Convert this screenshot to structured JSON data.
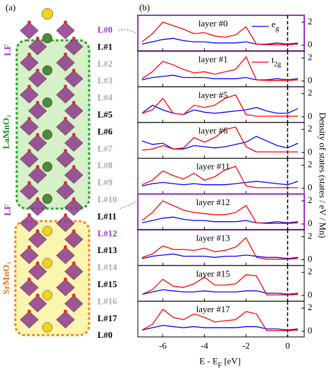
{
  "panel_a": {
    "label": "(a)",
    "lf_top": "LF",
    "lf_bottom": "LF",
    "lamno3": "LaMnO₃",
    "srmno3": "SrMnO₃",
    "layers": [
      "L#0",
      "L#1",
      "L#2",
      "L#3",
      "L#4",
      "L#5",
      "L#6",
      "L#7",
      "L#8",
      "L#9",
      "L#10",
      "L#11",
      "L#12",
      "L#13",
      "L#14",
      "L#15",
      "L#16",
      "L#17",
      "L#0"
    ]
  },
  "figure_b": {
    "label": "(b)",
    "ylabel": "Density of states (states / eV / Mn)"
  },
  "chart_data": [
    {
      "type": "line",
      "title": "layer #0",
      "x": [
        -7,
        -6.5,
        -6,
        -5.5,
        -5,
        -4.5,
        -4,
        -3.5,
        -3,
        -2.5,
        -2,
        -1.5,
        -1,
        -0.5,
        0,
        0.5
      ],
      "xlim": [
        -7.2,
        0.8
      ],
      "ylim": [
        -0.5,
        2.6
      ],
      "yticks": [
        0,
        2
      ],
      "series": [
        {
          "name": [
            "e",
            "g"
          ],
          "color": "#0000ff",
          "values": [
            0.1,
            0.3,
            0.5,
            0.6,
            0.4,
            0.3,
            0.3,
            0.2,
            0.2,
            0.2,
            0.3,
            0.1,
            0.1,
            0.2,
            0.1,
            0.2
          ]
        },
        {
          "color": "#ff0000",
          "values": [
            0.3,
            1.0,
            2.0,
            1.7,
            1.4,
            1.0,
            1.1,
            0.8,
            0.7,
            0.9,
            1.6,
            0.1,
            0.05,
            0.05,
            0.05,
            0.1
          ]
        }
      ]
    },
    {
      "type": "line",
      "title": "layer #1",
      "x": [
        -7,
        -6.5,
        -6,
        -5.5,
        -5,
        -4.5,
        -4,
        -3.5,
        -3,
        -2.5,
        -2,
        -1.5,
        -1,
        -0.5,
        0,
        0.5
      ],
      "xlim": [
        -7.2,
        0.8
      ],
      "ylim": [
        -0.5,
        2.6
      ],
      "yticks": [
        0,
        2
      ],
      "series": [
        {
          "color": "#0000ff",
          "values": [
            0.1,
            0.3,
            0.4,
            0.5,
            0.3,
            0.3,
            0.3,
            0.2,
            0.2,
            0.2,
            0.3,
            0.1,
            0.1,
            0.2,
            0.1,
            0.2
          ]
        },
        {
          "name": [
            "t",
            "2g"
          ],
          "color": "#ff0000",
          "values": [
            0.2,
            0.8,
            1.7,
            1.4,
            1.0,
            0.7,
            0.8,
            0.6,
            0.8,
            1.0,
            2.1,
            0.1,
            0.05,
            0.05,
            0.05,
            0.1
          ]
        }
      ]
    },
    {
      "type": "line",
      "title": "layer #5",
      "x": [
        -7,
        -6.5,
        -6,
        -5.5,
        -5,
        -4.5,
        -4,
        -3.5,
        -3,
        -2.5,
        -2,
        -1.5,
        -1,
        -0.5,
        0,
        0.5
      ],
      "xlim": [
        -7.2,
        0.8
      ],
      "ylim": [
        -0.5,
        2.6
      ],
      "yticks": [
        0,
        2
      ],
      "series": [
        {
          "color": "#0000ff",
          "values": [
            0.3,
            1.0,
            0.6,
            0.3,
            0.2,
            0.6,
            0.4,
            0.3,
            0.4,
            0.5,
            0.6,
            0.8,
            0.5,
            0.3,
            0.3,
            0.7
          ]
        },
        {
          "color": "#ff0000",
          "values": [
            0.3,
            0.6,
            1.6,
            0.3,
            0.2,
            1.0,
            0.8,
            1.0,
            1.6,
            1.9,
            0.2,
            0.05,
            0.05,
            0.05,
            0.05,
            0.05
          ]
        }
      ]
    },
    {
      "type": "line",
      "title": "layer #6",
      "x": [
        -7,
        -6.5,
        -6,
        -5.5,
        -5,
        -4.5,
        -4,
        -3.5,
        -3,
        -2.5,
        -2,
        -1.5,
        -1,
        -0.5,
        0,
        0.5
      ],
      "xlim": [
        -7.2,
        0.8
      ],
      "ylim": [
        -0.5,
        2.6
      ],
      "yticks": [
        0,
        2
      ],
      "series": [
        {
          "color": "#0000ff",
          "values": [
            1.0,
            0.7,
            0.8,
            0.3,
            0.3,
            0.6,
            0.5,
            0.4,
            0.5,
            0.7,
            0.9,
            1.4,
            1.0,
            0.6,
            0.4,
            0.8
          ]
        },
        {
          "color": "#ff0000",
          "values": [
            0.2,
            0.3,
            0.6,
            0.3,
            0.4,
            1.3,
            0.9,
            1.3,
            2.0,
            2.2,
            0.5,
            0.05,
            0.05,
            0.05,
            0.05,
            0.05
          ]
        }
      ]
    },
    {
      "type": "line",
      "title": "layer #11",
      "x": [
        -7,
        -6.5,
        -6,
        -5.5,
        -5,
        -4.5,
        -4,
        -3.5,
        -3,
        -2.5,
        -2,
        -1.5,
        -1,
        -0.5,
        0,
        0.5
      ],
      "xlim": [
        -7.2,
        0.8
      ],
      "ylim": [
        -0.5,
        2.6
      ],
      "yticks": [
        0,
        2
      ],
      "series": [
        {
          "color": "#0000ff",
          "values": [
            0.2,
            0.4,
            0.5,
            0.4,
            0.3,
            0.4,
            0.3,
            0.3,
            0.3,
            0.4,
            0.5,
            0.6,
            0.5,
            0.4,
            0.3,
            0.6
          ]
        },
        {
          "color": "#ff0000",
          "values": [
            0.3,
            0.7,
            1.5,
            1.1,
            0.8,
            1.3,
            0.7,
            1.0,
            1.6,
            1.9,
            0.2,
            0.05,
            0.05,
            0.05,
            0.05,
            0.05
          ]
        }
      ]
    },
    {
      "type": "line",
      "title": "layer #12",
      "x": [
        -7,
        -6.5,
        -6,
        -5.5,
        -5,
        -4.5,
        -4,
        -3.5,
        -3,
        -2.5,
        -2,
        -1.5,
        -1,
        -0.5,
        0,
        0.5
      ],
      "xlim": [
        -7.2,
        0.8
      ],
      "ylim": [
        -0.5,
        2.6
      ],
      "yticks": [
        0,
        2
      ],
      "series": [
        {
          "color": "#0000ff",
          "values": [
            0.1,
            0.3,
            0.5,
            0.6,
            0.4,
            0.3,
            0.3,
            0.2,
            0.2,
            0.2,
            0.3,
            0.1,
            0.1,
            0.2,
            0.1,
            0.2
          ]
        },
        {
          "color": "#ff0000",
          "values": [
            0.3,
            1.0,
            2.0,
            1.6,
            1.2,
            1.0,
            0.9,
            0.8,
            0.8,
            1.0,
            1.6,
            0.1,
            0.05,
            0.05,
            0.05,
            0.1
          ]
        }
      ]
    },
    {
      "type": "line",
      "title": "layer #13",
      "x": [
        -7,
        -6.5,
        -6,
        -5.5,
        -5,
        -4.5,
        -4,
        -3.5,
        -3,
        -2.5,
        -2,
        -1.5,
        -1,
        -0.5,
        0,
        0.5
      ],
      "xlim": [
        -7.2,
        0.8
      ],
      "ylim": [
        -0.5,
        2.6
      ],
      "yticks": [
        0,
        2
      ],
      "series": [
        {
          "color": "#0000ff",
          "values": [
            0.1,
            0.3,
            0.4,
            0.5,
            0.3,
            0.3,
            0.3,
            0.2,
            0.3,
            0.3,
            0.4,
            0.3,
            0.2,
            0.2,
            0.1,
            0.2
          ]
        },
        {
          "color": "#ff0000",
          "values": [
            0.2,
            0.5,
            1.2,
            0.9,
            0.9,
            0.8,
            1.0,
            0.7,
            0.8,
            1.1,
            1.9,
            0.2,
            0.05,
            0.05,
            0.05,
            0.1
          ]
        }
      ]
    },
    {
      "type": "line",
      "title": "layer #15",
      "x": [
        -7,
        -6.5,
        -6,
        -5.5,
        -5,
        -4.5,
        -4,
        -3.5,
        -3,
        -2.5,
        -2,
        -1.5,
        -1,
        -0.5,
        0,
        0.5
      ],
      "xlim": [
        -7.2,
        0.8
      ],
      "ylim": [
        -0.5,
        2.6
      ],
      "yticks": [
        0,
        2
      ],
      "series": [
        {
          "color": "#0000ff",
          "values": [
            0.1,
            0.3,
            0.5,
            0.4,
            0.3,
            0.3,
            0.4,
            0.3,
            0.3,
            0.3,
            0.4,
            0.4,
            0.2,
            0.2,
            0.1,
            0.2
          ]
        },
        {
          "color": "#ff0000",
          "values": [
            0.1,
            0.5,
            1.4,
            0.8,
            0.7,
            1.0,
            1.6,
            0.9,
            0.9,
            1.0,
            1.8,
            1.7,
            0.05,
            0.05,
            0.05,
            0.1
          ]
        }
      ]
    },
    {
      "type": "line",
      "title": "layer #17",
      "x": [
        -7,
        -6.5,
        -6,
        -5.5,
        -5,
        -4.5,
        -4,
        -3.5,
        -3,
        -2.5,
        -2,
        -1.5,
        -1,
        -0.5,
        0,
        0.5
      ],
      "xlim": [
        -7.2,
        0.8
      ],
      "ylim": [
        -0.5,
        2.6
      ],
      "yticks": [
        0,
        2
      ],
      "xticks": [
        -6,
        -4,
        -2,
        0
      ],
      "xlabel": [
        "E - E",
        "F",
        " [eV]"
      ],
      "series": [
        {
          "color": "#0000ff",
          "values": [
            0.1,
            0.3,
            0.5,
            0.4,
            0.3,
            0.4,
            0.3,
            0.3,
            0.3,
            0.3,
            0.4,
            0.4,
            0.2,
            0.2,
            0.1,
            0.2
          ]
        },
        {
          "color": "#ff0000",
          "values": [
            0.1,
            0.6,
            1.9,
            1.2,
            1.0,
            1.5,
            1.2,
            0.8,
            0.9,
            1.0,
            1.7,
            1.5,
            0.05,
            0.05,
            0.05,
            0.1
          ]
        }
      ]
    }
  ]
}
